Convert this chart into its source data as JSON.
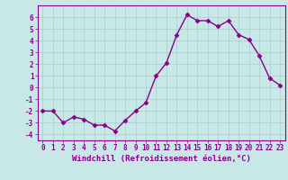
{
  "x": [
    0,
    1,
    2,
    3,
    4,
    5,
    6,
    7,
    8,
    9,
    10,
    11,
    12,
    13,
    14,
    15,
    16,
    17,
    18,
    19,
    20,
    21,
    22,
    23
  ],
  "y": [
    -2.0,
    -2.0,
    -3.0,
    -2.5,
    -2.7,
    -3.2,
    -3.2,
    -3.7,
    -2.8,
    -2.0,
    -1.3,
    1.0,
    2.1,
    4.5,
    6.2,
    5.7,
    5.7,
    5.2,
    5.7,
    4.5,
    4.1,
    2.7,
    0.8,
    0.2
  ],
  "line_color": "#880088",
  "marker": "D",
  "markersize": 2.5,
  "linewidth": 1.0,
  "background_color": "#c8e8e8",
  "grid_color": "#aacccc",
  "xlabel": "Windchill (Refroidissement éolien,°C)",
  "xlabel_fontsize": 6.5,
  "tick_fontsize": 5.5,
  "xlim": [
    -0.5,
    23.5
  ],
  "ylim": [
    -4.5,
    7.0
  ],
  "yticks": [
    -4,
    -3,
    -2,
    -1,
    0,
    1,
    2,
    3,
    4,
    5,
    6
  ],
  "xticks": [
    0,
    1,
    2,
    3,
    4,
    5,
    6,
    7,
    8,
    9,
    10,
    11,
    12,
    13,
    14,
    15,
    16,
    17,
    18,
    19,
    20,
    21,
    22,
    23
  ]
}
